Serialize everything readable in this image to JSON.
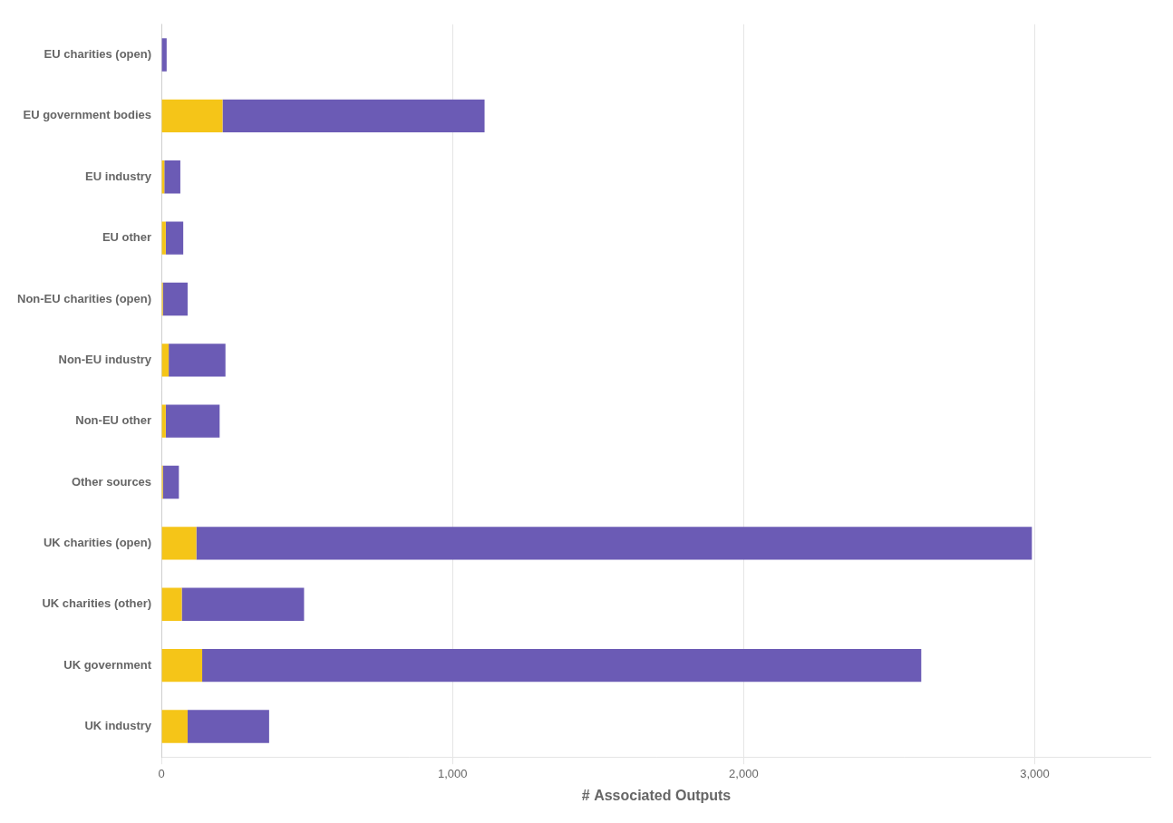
{
  "chart_data": {
    "type": "bar",
    "orientation": "horizontal",
    "stacked": true,
    "categories": [
      "EU charities (open)",
      "EU government bodies",
      "EU industry",
      "EU other",
      "Non-EU charities (open)",
      "Non-EU industry",
      "Non-EU other",
      "Other sources",
      "UK charities (open)",
      "UK charities (other)",
      "UK government",
      "UK industry"
    ],
    "series": [
      {
        "color": "#F5C518",
        "values": [
          0,
          210,
          10,
          15,
          5,
          25,
          15,
          5,
          120,
          70,
          140,
          90
        ]
      },
      {
        "color": "#6B5BB5",
        "values": [
          18,
          900,
          55,
          60,
          85,
          195,
          185,
          55,
          2870,
          420,
          2470,
          280
        ]
      }
    ],
    "xlabel": "# Associated Outputs",
    "xlim": [
      0,
      3400
    ],
    "xticks": [
      0,
      {
        "value": 1000,
        "label": "1,000"
      },
      {
        "value": 2000,
        "label": "2,000"
      },
      {
        "value": 3000,
        "label": "3,000"
      }
    ],
    "grid": true
  }
}
